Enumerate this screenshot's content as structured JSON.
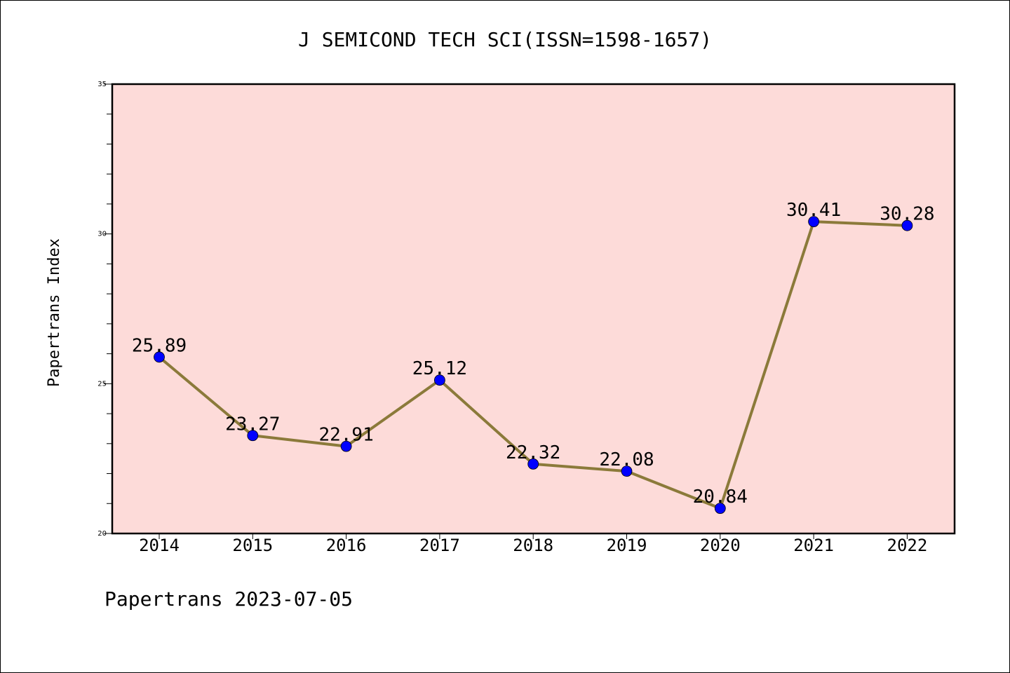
{
  "chart_data": {
    "type": "line",
    "title": "J SEMICOND TECH SCI(ISSN=1598-1657)",
    "xlabel": "",
    "ylabel": "Papertrans Index",
    "categories": [
      "2014",
      "2015",
      "2016",
      "2017",
      "2018",
      "2019",
      "2020",
      "2021",
      "2022"
    ],
    "series": [
      {
        "values": [
          25.89,
          23.27,
          22.91,
          25.12,
          22.32,
          22.08,
          20.84,
          30.41,
          30.28
        ],
        "labels": [
          "25.89",
          "23.27",
          "22.91",
          "25.12",
          "22.32",
          "22.08",
          "20.84",
          "30.41",
          "30.28"
        ]
      }
    ],
    "ylim": [
      20,
      35
    ],
    "yticks": [
      20,
      25,
      30,
      35
    ],
    "grid": false,
    "colors": {
      "plot_background": "#fddbd9",
      "line": "#8b7a3a",
      "marker": "#0000ff"
    }
  },
  "footer": "Papertrans 2023-07-05"
}
